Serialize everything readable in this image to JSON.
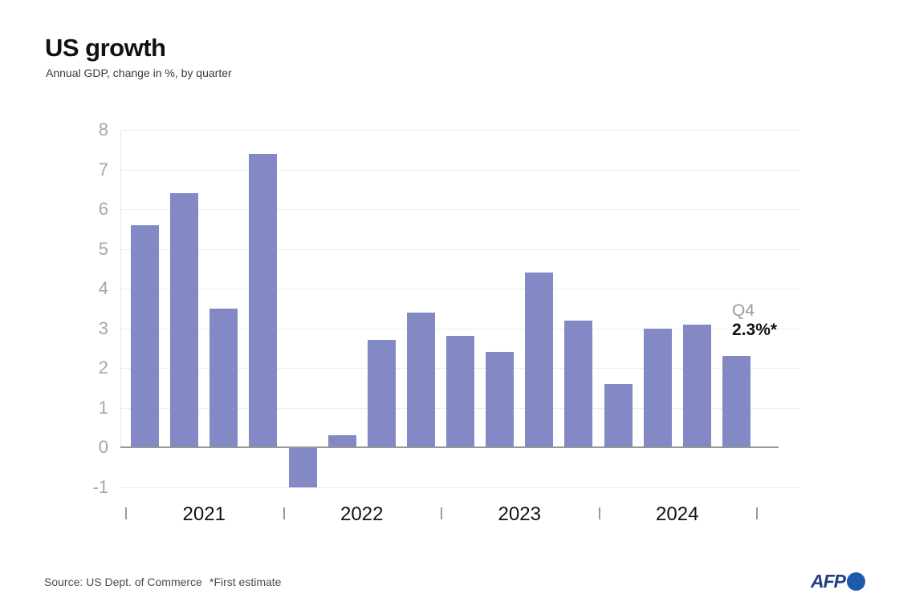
{
  "header": {
    "title": "US growth",
    "subtitle": "Annual GDP, change in %, by quarter"
  },
  "chart_data": {
    "type": "bar",
    "title": "US growth",
    "subtitle": "Annual GDP, change in %, by quarter",
    "categories": [
      "2021 Q1",
      "2021 Q2",
      "2021 Q3",
      "2021 Q4",
      "2022 Q1",
      "2022 Q2",
      "2022 Q3",
      "2022 Q4",
      "2023 Q1",
      "2023 Q2",
      "2023 Q3",
      "2023 Q4",
      "2024 Q1",
      "2024 Q2",
      "2024 Q3",
      "2024 Q4"
    ],
    "values": [
      5.6,
      6.4,
      3.5,
      7.4,
      -1.0,
      0.3,
      2.7,
      3.4,
      2.8,
      2.4,
      4.4,
      3.2,
      1.6,
      3.0,
      3.1,
      2.3
    ],
    "year_labels": [
      "2021",
      "2022",
      "2023",
      "2024"
    ],
    "y_ticks": [
      8,
      7,
      6,
      5,
      4,
      3,
      2,
      1,
      0,
      -1
    ],
    "ylim": [
      -1,
      8
    ],
    "xlabel": "",
    "ylabel": "",
    "grid": "horizontal",
    "legend": "none",
    "bar_color": "#8289c4",
    "annotation": {
      "label": "Q4",
      "value": "2.3%*"
    }
  },
  "colors": {
    "bar": "#8289c4",
    "gridline": "#ececec",
    "zero_axis": "#969696",
    "axis_label": "#a6a6a6",
    "year_label": "#121212",
    "annotation_label": "#9a9a9a",
    "annotation_value": "#111111"
  },
  "footer": {
    "source": "Source: US Dept. of Commerce",
    "note": "*First estimate",
    "logo": {
      "text": "AFP",
      "text_color": "#243e8c",
      "circle_color": "#1d5aa9"
    }
  }
}
